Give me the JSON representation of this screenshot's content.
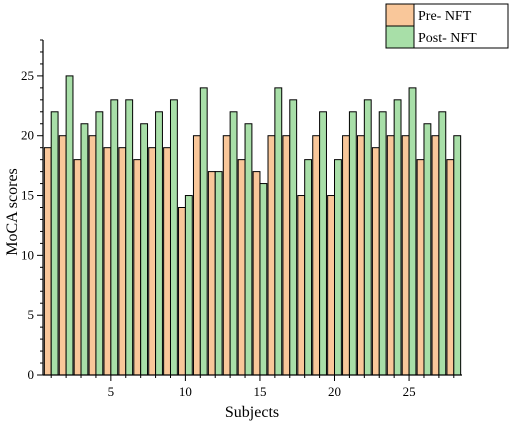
{
  "chart_data": {
    "type": "bar",
    "title": "",
    "xlabel": "Subjects",
    "ylabel": "MoCA scores",
    "categories": [
      1,
      2,
      3,
      4,
      5,
      6,
      7,
      8,
      9,
      10,
      11,
      12,
      13,
      14,
      15,
      16,
      17,
      18,
      19,
      20,
      21,
      22,
      23,
      24,
      25,
      26,
      27,
      28
    ],
    "x_ticks": [
      5,
      10,
      15,
      20,
      25
    ],
    "y_ticks": [
      0,
      5,
      10,
      15,
      20,
      25
    ],
    "ylim": [
      0,
      28
    ],
    "xlim": [
      0.45,
      28.55
    ],
    "grid": false,
    "legend_position": "top-right",
    "series": [
      {
        "name": "Pre- NFT",
        "color": "#f9c79a",
        "values": [
          19,
          20,
          18,
          20,
          19,
          19,
          18,
          19,
          19,
          14,
          20,
          17,
          20,
          18,
          17,
          20,
          20,
          15,
          20,
          15,
          20,
          20,
          19,
          20,
          20,
          18,
          20,
          18
        ]
      },
      {
        "name": "Post- NFT",
        "color": "#a8dfa8",
        "values": [
          22,
          25,
          21,
          22,
          23,
          23,
          21,
          22,
          23,
          15,
          24,
          17,
          22,
          21,
          16,
          24,
          23,
          18,
          22,
          18,
          22,
          23,
          22,
          23,
          24,
          21,
          22,
          20
        ]
      }
    ]
  }
}
